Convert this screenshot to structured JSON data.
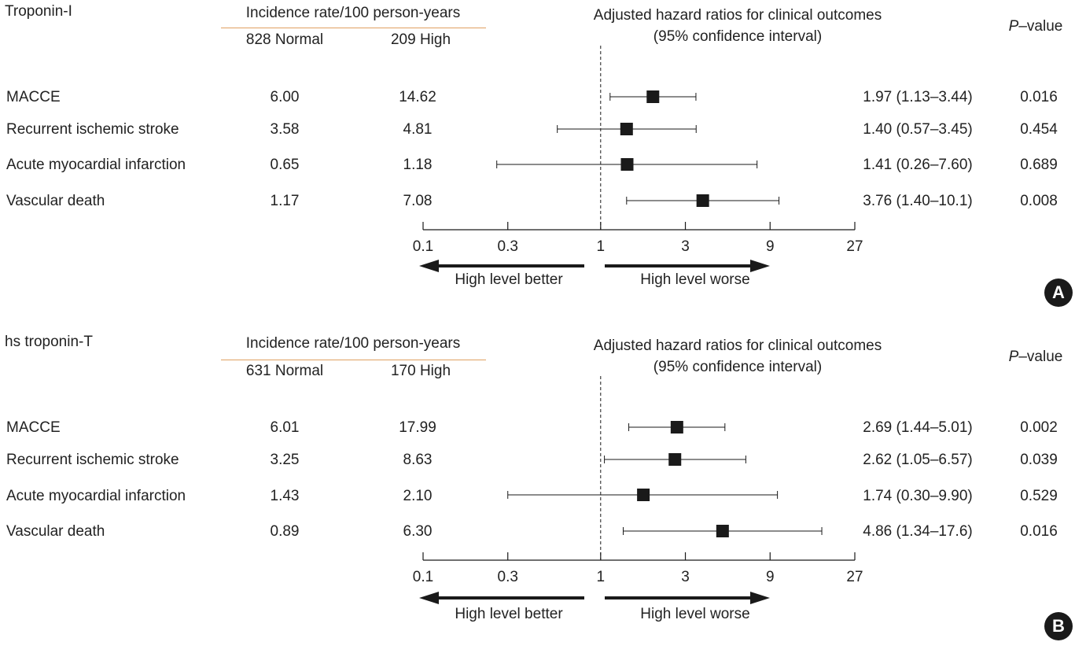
{
  "chart_data": [
    {
      "type": "forest",
      "title": "Troponin-I",
      "panel_label": "A",
      "incidence_header": "Incidence rate/100 person-years",
      "group_labels": [
        "828 Normal",
        "209 High"
      ],
      "hr_header_line1": "Adjusted hazard ratios for clinical outcomes",
      "hr_header_line2": "(95% confidence interval)",
      "pvalue_header_prefix": "P",
      "pvalue_header_suffix": "–value",
      "x_scale": "log3",
      "x_ticks": [
        0.1,
        0.3,
        1,
        3,
        9,
        27
      ],
      "x_tick_labels": [
        "0.1",
        "0.3",
        "1",
        "3",
        "9",
        "27"
      ],
      "reference_line": 1,
      "arrow_left_label": "High level better",
      "arrow_right_label": "High level worse",
      "rows": [
        {
          "outcome": "MACCE",
          "normal_rate": "6.00",
          "high_rate": "14.62",
          "hr": 1.97,
          "lo": 1.13,
          "hi": 3.44,
          "hr_text": "1.97 (1.13–3.44)",
          "p": "0.016"
        },
        {
          "outcome": "Recurrent ischemic stroke",
          "normal_rate": "3.58",
          "high_rate": "4.81",
          "hr": 1.4,
          "lo": 0.57,
          "hi": 3.45,
          "hr_text": "1.40 (0.57–3.45)",
          "p": "0.454"
        },
        {
          "outcome": "Acute myocardial infarction",
          "normal_rate": "0.65",
          "high_rate": "1.18",
          "hr": 1.41,
          "lo": 0.26,
          "hi": 7.6,
          "hr_text": "1.41 (0.26–7.60)",
          "p": "0.689"
        },
        {
          "outcome": "Vascular death",
          "normal_rate": "1.17",
          "high_rate": "7.08",
          "hr": 3.76,
          "lo": 1.4,
          "hi": 10.1,
          "hr_text": "3.76 (1.40–10.1)",
          "p": "0.008"
        }
      ]
    },
    {
      "type": "forest",
      "title": "hs troponin-T",
      "panel_label": "B",
      "incidence_header": "Incidence rate/100 person-years",
      "group_labels": [
        "631 Normal",
        "170 High"
      ],
      "hr_header_line1": "Adjusted hazard ratios for clinical outcomes",
      "hr_header_line2": "(95% confidence interval)",
      "pvalue_header_prefix": "P",
      "pvalue_header_suffix": "–value",
      "x_scale": "log3",
      "x_ticks": [
        0.1,
        0.3,
        1,
        3,
        9,
        27
      ],
      "x_tick_labels": [
        "0.1",
        "0.3",
        "1",
        "3",
        "9",
        "27"
      ],
      "reference_line": 1,
      "arrow_left_label": "High level better",
      "arrow_right_label": "High level worse",
      "rows": [
        {
          "outcome": "MACCE",
          "normal_rate": "6.01",
          "high_rate": "17.99",
          "hr": 2.69,
          "lo": 1.44,
          "hi": 5.01,
          "hr_text": "2.69 (1.44–5.01)",
          "p": "0.002"
        },
        {
          "outcome": "Recurrent ischemic stroke",
          "normal_rate": "3.25",
          "high_rate": "8.63",
          "hr": 2.62,
          "lo": 1.05,
          "hi": 6.57,
          "hr_text": "2.62 (1.05–6.57)",
          "p": "0.039"
        },
        {
          "outcome": "Acute myocardial infarction",
          "normal_rate": "1.43",
          "high_rate": "2.10",
          "hr": 1.74,
          "lo": 0.3,
          "hi": 9.9,
          "hr_text": "1.74 (0.30–9.90)",
          "p": "0.529"
        },
        {
          "outcome": "Vascular death",
          "normal_rate": "0.89",
          "high_rate": "6.30",
          "hr": 4.86,
          "lo": 1.34,
          "hi": 17.6,
          "hr_text": "4.86 (1.34–17.6)",
          "p": "0.016"
        }
      ]
    }
  ],
  "colors": {
    "text": "#222222",
    "marker": "#1a1a1a",
    "header_rule": "#e0a060",
    "badge": "#1a1a1a"
  }
}
